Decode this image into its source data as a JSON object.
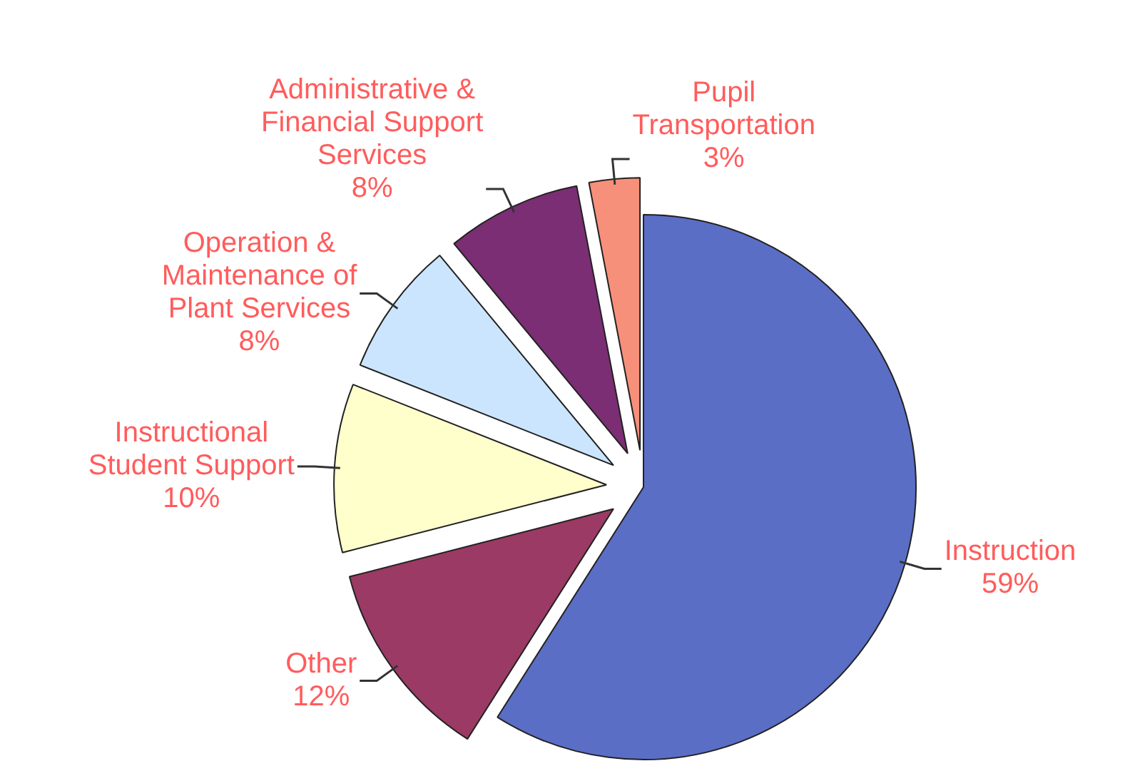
{
  "chart_data": {
    "type": "pie",
    "categories": [
      "Instruction",
      "Other",
      "Instructional Student Support",
      "Operation & Maintenance of Plant Services",
      "Administrative & Financial Support Services",
      "Pupil Transportation"
    ],
    "values": [
      59,
      12,
      10,
      8,
      8,
      3
    ],
    "colors": [
      "#5b6ec6",
      "#9b3a64",
      "#ffffcc",
      "#cce5ff",
      "#7b2e74",
      "#f7907a"
    ],
    "value_labels": [
      "59%",
      "12%",
      "10%",
      "8%",
      "8%",
      "3%"
    ],
    "legend": false
  }
}
